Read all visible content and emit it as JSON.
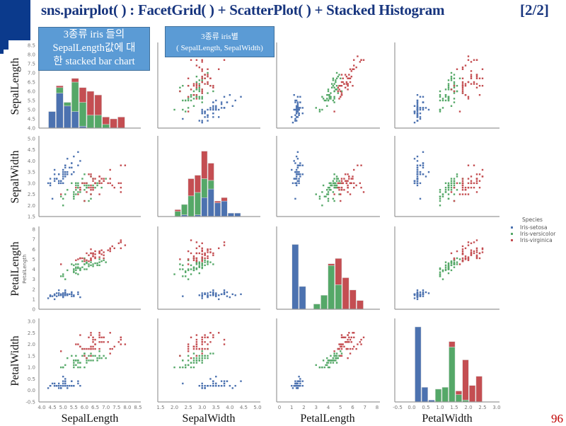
{
  "slide": {
    "title": "sns.pairplot( ) : FacetGrid( ) + ScatterPlot( ) + Stacked Histogram",
    "page_indicator": "[2/2]",
    "slide_number": "96",
    "accent_color": "#0b3a8c",
    "callouts": [
      {
        "line1": "3종류 iris 들의",
        "line2": "SepalLength값에 대",
        "line3": "한 stacked bar chart"
      },
      {
        "line1": "3종류 iris별",
        "line2": "( SepalLength, SepalWidth)"
      }
    ],
    "row_labels": [
      "SepalLength",
      "SepalWidth",
      "PetalLength",
      "PetalWidth"
    ],
    "col_labels": [
      "SepalLength",
      "SepalWidth",
      "PetalLength",
      "PetalWidth"
    ],
    "inner_ylabel": "PetalLength"
  },
  "chart_data": {
    "type": "scatter",
    "subtype": "pairplot",
    "diagonal": "stacked histogram",
    "variables": [
      "SepalLength",
      "SepalWidth",
      "PetalLength",
      "PetalWidth"
    ],
    "axis_limits": {
      "SepalLength": [
        4.0,
        8.5
      ],
      "SepalWidth": [
        1.5,
        5.0
      ],
      "PetalLength": [
        0,
        8
      ],
      "PetalWidth": [
        -0.5,
        3.0
      ]
    },
    "tick_labels": {
      "SepalLength": [
        "4.0",
        "4.5",
        "5.0",
        "5.5",
        "6.0",
        "6.5",
        "7.0",
        "7.5",
        "8.0",
        "8.5"
      ],
      "SepalWidth": [
        "1.5",
        "2.0",
        "2.5",
        "3.0",
        "3.5",
        "4.0",
        "4.5",
        "5.0"
      ],
      "PetalLength": [
        "0",
        "1",
        "2",
        "3",
        "4",
        "5",
        "6",
        "7",
        "8"
      ],
      "PetalWidth": [
        "-0.5",
        "0.0",
        "0.5",
        "1.0",
        "1.5",
        "2.0",
        "2.5",
        "3.0"
      ]
    },
    "grid": false,
    "legend": {
      "title": "Species",
      "placement": "right",
      "entries": [
        "Iris-setosa",
        "Iris-versicolor",
        "Iris-virginica"
      ]
    },
    "colors": {
      "Iris-setosa": "#4c72b0",
      "Iris-versicolor": "#55a868",
      "Iris-virginica": "#c44e52"
    },
    "series": [
      {
        "name": "Iris-setosa",
        "rows": [
          [
            5.1,
            3.5,
            1.4,
            0.2
          ],
          [
            4.9,
            3.0,
            1.4,
            0.2
          ],
          [
            4.7,
            3.2,
            1.3,
            0.2
          ],
          [
            4.6,
            3.1,
            1.5,
            0.2
          ],
          [
            5.0,
            3.6,
            1.4,
            0.2
          ],
          [
            5.4,
            3.9,
            1.7,
            0.4
          ],
          [
            4.6,
            3.4,
            1.4,
            0.3
          ],
          [
            5.0,
            3.4,
            1.5,
            0.2
          ],
          [
            4.4,
            2.9,
            1.4,
            0.2
          ],
          [
            4.9,
            3.1,
            1.5,
            0.1
          ],
          [
            5.4,
            3.7,
            1.5,
            0.2
          ],
          [
            4.8,
            3.4,
            1.6,
            0.2
          ],
          [
            4.8,
            3.0,
            1.4,
            0.1
          ],
          [
            4.3,
            3.0,
            1.1,
            0.1
          ],
          [
            5.8,
            4.0,
            1.2,
            0.2
          ],
          [
            5.7,
            4.4,
            1.5,
            0.4
          ],
          [
            5.4,
            3.9,
            1.3,
            0.4
          ],
          [
            5.1,
            3.5,
            1.4,
            0.3
          ],
          [
            5.7,
            3.8,
            1.7,
            0.3
          ],
          [
            5.1,
            3.8,
            1.5,
            0.3
          ],
          [
            5.4,
            3.4,
            1.7,
            0.2
          ],
          [
            5.1,
            3.7,
            1.5,
            0.4
          ],
          [
            4.6,
            3.6,
            1.0,
            0.2
          ],
          [
            5.1,
            3.3,
            1.7,
            0.5
          ],
          [
            4.8,
            3.4,
            1.9,
            0.2
          ],
          [
            5.0,
            3.0,
            1.6,
            0.2
          ],
          [
            5.0,
            3.4,
            1.6,
            0.4
          ],
          [
            5.2,
            3.5,
            1.5,
            0.2
          ],
          [
            5.2,
            3.4,
            1.4,
            0.2
          ],
          [
            4.7,
            3.2,
            1.6,
            0.2
          ],
          [
            4.8,
            3.1,
            1.6,
            0.2
          ],
          [
            5.4,
            3.4,
            1.5,
            0.4
          ],
          [
            5.2,
            4.1,
            1.5,
            0.1
          ],
          [
            5.5,
            4.2,
            1.4,
            0.2
          ],
          [
            4.9,
            3.1,
            1.5,
            0.1
          ],
          [
            5.0,
            3.2,
            1.2,
            0.2
          ],
          [
            5.5,
            3.5,
            1.3,
            0.2
          ],
          [
            4.9,
            3.1,
            1.5,
            0.1
          ],
          [
            4.4,
            3.0,
            1.3,
            0.2
          ],
          [
            5.1,
            3.4,
            1.5,
            0.2
          ],
          [
            5.0,
            3.5,
            1.3,
            0.3
          ],
          [
            4.5,
            2.3,
            1.3,
            0.3
          ],
          [
            4.4,
            3.2,
            1.3,
            0.2
          ],
          [
            5.0,
            3.5,
            1.6,
            0.6
          ],
          [
            5.1,
            3.8,
            1.9,
            0.4
          ],
          [
            4.8,
            3.0,
            1.4,
            0.3
          ],
          [
            5.1,
            3.8,
            1.6,
            0.2
          ],
          [
            4.6,
            3.2,
            1.4,
            0.2
          ],
          [
            5.3,
            3.7,
            1.5,
            0.2
          ],
          [
            5.0,
            3.3,
            1.4,
            0.2
          ]
        ]
      },
      {
        "name": "Iris-versicolor",
        "rows": [
          [
            7.0,
            3.2,
            4.7,
            1.4
          ],
          [
            6.4,
            3.2,
            4.5,
            1.5
          ],
          [
            6.9,
            3.1,
            4.9,
            1.5
          ],
          [
            5.5,
            2.3,
            4.0,
            1.3
          ],
          [
            6.5,
            2.8,
            4.6,
            1.5
          ],
          [
            5.7,
            2.8,
            4.5,
            1.3
          ],
          [
            6.3,
            3.3,
            4.7,
            1.6
          ],
          [
            4.9,
            2.4,
            3.3,
            1.0
          ],
          [
            6.6,
            2.9,
            4.6,
            1.3
          ],
          [
            5.2,
            2.7,
            3.9,
            1.4
          ],
          [
            5.0,
            2.0,
            3.5,
            1.0
          ],
          [
            5.9,
            3.0,
            4.2,
            1.5
          ],
          [
            6.0,
            2.2,
            4.0,
            1.0
          ],
          [
            6.1,
            2.9,
            4.7,
            1.4
          ],
          [
            5.6,
            2.9,
            3.6,
            1.3
          ],
          [
            6.7,
            3.1,
            4.4,
            1.4
          ],
          [
            5.6,
            3.0,
            4.5,
            1.5
          ],
          [
            5.8,
            2.7,
            4.1,
            1.0
          ],
          [
            6.2,
            2.2,
            4.5,
            1.5
          ],
          [
            5.6,
            2.5,
            3.9,
            1.1
          ],
          [
            5.9,
            3.2,
            4.8,
            1.8
          ],
          [
            6.1,
            2.8,
            4.0,
            1.3
          ],
          [
            6.3,
            2.5,
            4.9,
            1.5
          ],
          [
            6.1,
            2.8,
            4.7,
            1.2
          ],
          [
            6.4,
            2.9,
            4.3,
            1.3
          ],
          [
            6.6,
            3.0,
            4.4,
            1.4
          ],
          [
            6.8,
            2.8,
            4.8,
            1.4
          ],
          [
            6.7,
            3.0,
            5.0,
            1.7
          ],
          [
            6.0,
            2.9,
            4.5,
            1.5
          ],
          [
            5.7,
            2.6,
            3.5,
            1.0
          ],
          [
            5.5,
            2.4,
            3.8,
            1.1
          ],
          [
            5.5,
            2.4,
            3.7,
            1.0
          ],
          [
            5.8,
            2.7,
            3.9,
            1.2
          ],
          [
            6.0,
            2.7,
            5.1,
            1.6
          ],
          [
            5.4,
            3.0,
            4.5,
            1.5
          ],
          [
            6.0,
            3.4,
            4.5,
            1.6
          ],
          [
            6.7,
            3.1,
            4.7,
            1.5
          ],
          [
            6.3,
            2.3,
            4.4,
            1.3
          ],
          [
            5.6,
            3.0,
            4.1,
            1.3
          ],
          [
            5.5,
            2.5,
            4.0,
            1.3
          ],
          [
            5.5,
            2.6,
            4.4,
            1.2
          ],
          [
            6.1,
            3.0,
            4.6,
            1.4
          ],
          [
            5.8,
            2.6,
            4.0,
            1.2
          ],
          [
            5.0,
            2.3,
            3.3,
            1.0
          ],
          [
            5.6,
            2.7,
            4.2,
            1.3
          ],
          [
            5.7,
            3.0,
            4.2,
            1.2
          ],
          [
            5.7,
            2.9,
            4.2,
            1.3
          ],
          [
            6.2,
            2.9,
            4.3,
            1.3
          ],
          [
            5.1,
            2.5,
            3.0,
            1.1
          ],
          [
            5.7,
            2.8,
            4.1,
            1.3
          ]
        ]
      },
      {
        "name": "Iris-virginica",
        "rows": [
          [
            6.3,
            3.3,
            6.0,
            2.5
          ],
          [
            5.8,
            2.7,
            5.1,
            1.9
          ],
          [
            7.1,
            3.0,
            5.9,
            2.1
          ],
          [
            6.3,
            2.9,
            5.6,
            1.8
          ],
          [
            6.5,
            3.0,
            5.8,
            2.2
          ],
          [
            7.6,
            3.0,
            6.6,
            2.1
          ],
          [
            4.9,
            2.5,
            4.5,
            1.7
          ],
          [
            7.3,
            2.9,
            6.3,
            1.8
          ],
          [
            6.7,
            2.5,
            5.8,
            1.8
          ],
          [
            7.2,
            3.6,
            6.1,
            2.5
          ],
          [
            6.5,
            3.2,
            5.1,
            2.0
          ],
          [
            6.4,
            2.7,
            5.3,
            1.9
          ],
          [
            6.8,
            3.0,
            5.5,
            2.1
          ],
          [
            5.7,
            2.5,
            5.0,
            2.0
          ],
          [
            5.8,
            2.8,
            5.1,
            2.4
          ],
          [
            6.4,
            3.2,
            5.3,
            2.3
          ],
          [
            6.5,
            3.0,
            5.5,
            1.8
          ],
          [
            7.7,
            3.8,
            6.7,
            2.2
          ],
          [
            7.7,
            2.6,
            6.9,
            2.3
          ],
          [
            6.0,
            2.2,
            5.0,
            1.5
          ],
          [
            6.9,
            3.2,
            5.7,
            2.3
          ],
          [
            5.6,
            2.8,
            4.9,
            2.0
          ],
          [
            7.7,
            2.8,
            6.7,
            2.0
          ],
          [
            6.3,
            2.7,
            4.9,
            1.8
          ],
          [
            6.7,
            3.3,
            5.7,
            2.1
          ],
          [
            7.2,
            3.2,
            6.0,
            1.8
          ],
          [
            6.2,
            2.8,
            4.8,
            1.8
          ],
          [
            6.1,
            3.0,
            4.9,
            1.8
          ],
          [
            6.4,
            2.8,
            5.6,
            2.1
          ],
          [
            7.2,
            3.0,
            5.8,
            1.6
          ],
          [
            7.4,
            2.8,
            6.1,
            1.9
          ],
          [
            7.9,
            3.8,
            6.4,
            2.0
          ],
          [
            6.4,
            2.8,
            5.6,
            2.2
          ],
          [
            6.3,
            2.8,
            5.1,
            1.5
          ],
          [
            6.1,
            2.6,
            5.6,
            1.4
          ],
          [
            7.7,
            3.0,
            6.1,
            2.3
          ],
          [
            6.3,
            3.4,
            5.6,
            2.4
          ],
          [
            6.4,
            3.1,
            5.5,
            1.8
          ],
          [
            6.0,
            3.0,
            4.8,
            1.8
          ],
          [
            6.9,
            3.1,
            5.4,
            2.1
          ],
          [
            6.7,
            3.1,
            5.6,
            2.4
          ],
          [
            6.9,
            3.1,
            5.1,
            2.3
          ],
          [
            5.8,
            2.7,
            5.1,
            1.9
          ],
          [
            6.8,
            3.2,
            5.9,
            2.3
          ],
          [
            6.7,
            3.3,
            5.7,
            2.5
          ],
          [
            6.7,
            3.0,
            5.2,
            2.3
          ],
          [
            6.3,
            2.5,
            5.0,
            1.9
          ],
          [
            6.5,
            3.0,
            5.2,
            2.0
          ],
          [
            6.2,
            3.4,
            5.4,
            2.3
          ],
          [
            5.9,
            3.0,
            5.1,
            1.8
          ]
        ]
      }
    ]
  }
}
